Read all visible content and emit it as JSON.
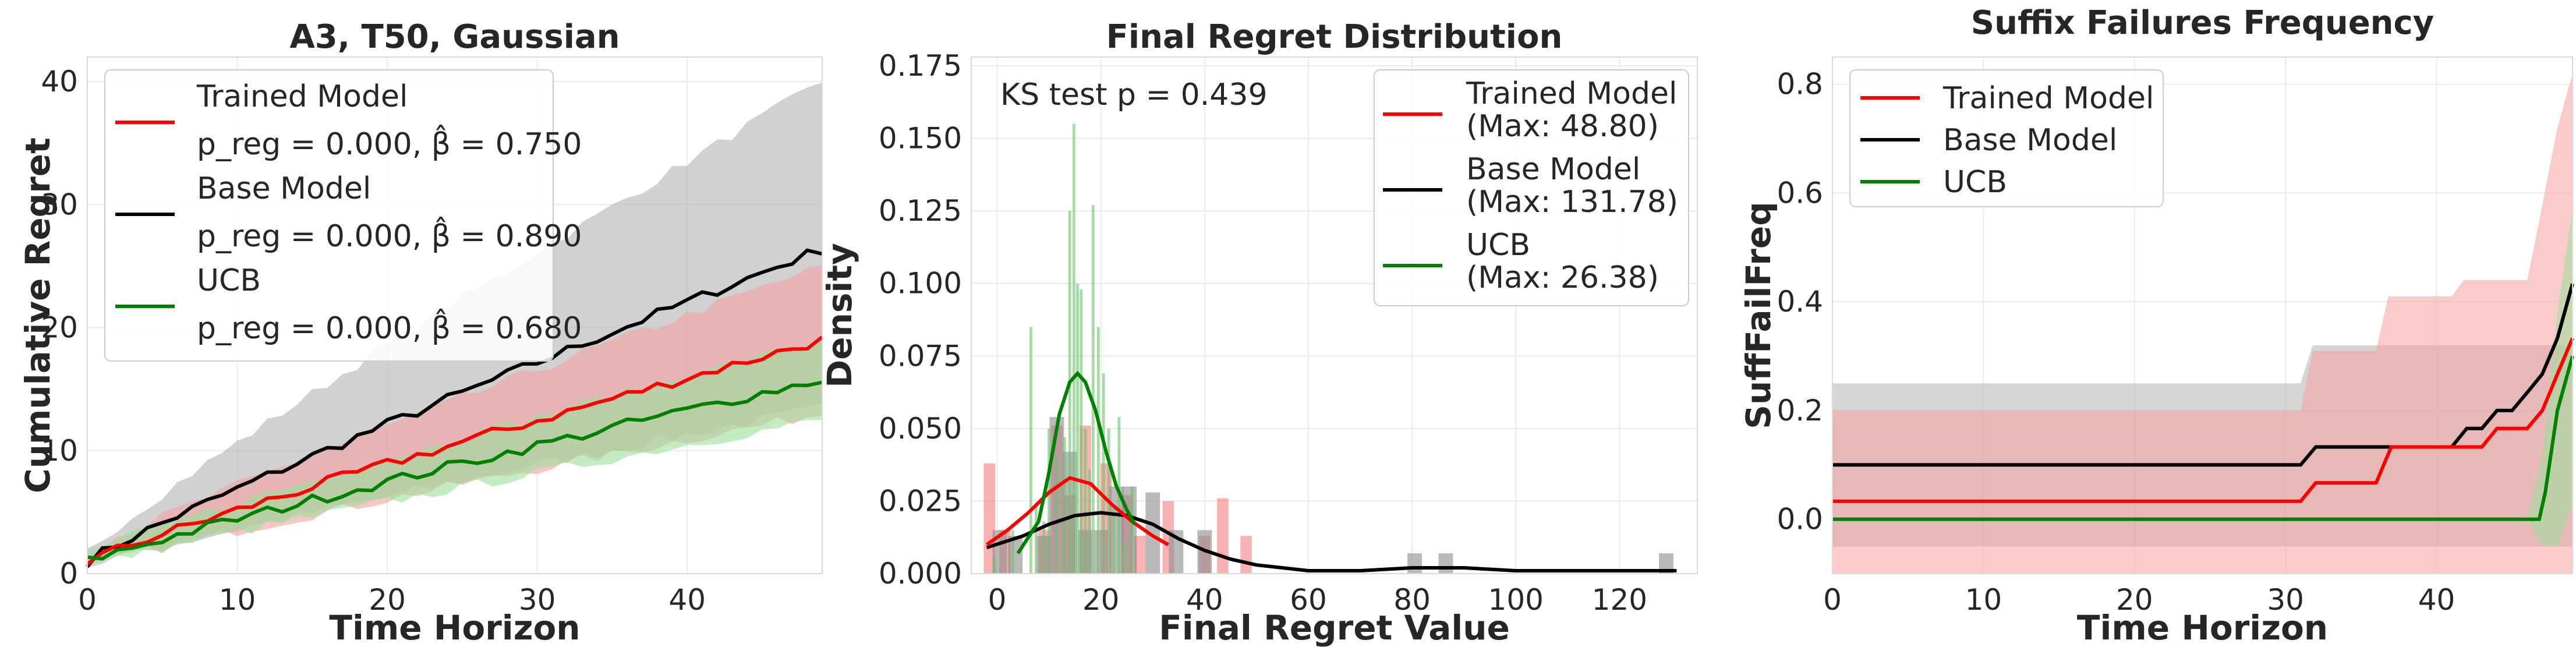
{
  "chart_data": [
    {
      "type": "line",
      "title": "A3, T50, Gaussian",
      "xlabel": "Time Horizon",
      "ylabel": "Cumulative Regret",
      "xlim": [
        0,
        49
      ],
      "ylim": [
        0,
        42
      ],
      "xticks": [
        "0",
        "10",
        "20",
        "30",
        "40"
      ],
      "yticks": [
        "0",
        "10",
        "20",
        "30",
        "40"
      ],
      "grid": true,
      "legend_position": "top-left",
      "series": [
        {
          "name": "Trained Model",
          "stat": "p_reg = 0.000, β̂ = 0.750",
          "color": "#ff0000",
          "band_color": "#f4a0a0",
          "end_value": 19.0,
          "end_low": 13.0,
          "end_high": 25.0
        },
        {
          "name": "Base Model",
          "stat": "p_reg = 0.000, β̂ = 0.890",
          "color": "#000000",
          "band_color": "#b3b3b3",
          "end_value": 26.4,
          "end_low": 13.5,
          "end_high": 40.0
        },
        {
          "name": "UCB",
          "stat": "p_reg = 0.000, β̂ = 0.680",
          "color": "#008000",
          "band_color": "#9be09b",
          "end_value": 15.8,
          "end_low": 12.5,
          "end_high": 19.0
        }
      ]
    },
    {
      "type": "bar",
      "title": "Final Regret Distribution",
      "xlabel": "Final Regret Value",
      "ylabel": "Density",
      "xlim": [
        -5,
        135
      ],
      "ylim": [
        0,
        0.178
      ],
      "xticks": [
        "0",
        "20",
        "40",
        "60",
        "80",
        "100",
        "120"
      ],
      "yticks": [
        "0.000",
        "0.025",
        "0.050",
        "0.075",
        "0.100",
        "0.125",
        "0.150",
        "0.175"
      ],
      "annotation": "KS test p = 0.439",
      "grid": true,
      "legend_position": "top-right",
      "series": [
        {
          "name": "Trained Model",
          "max_label": "(Max: 48.80)",
          "color": "#ff0000",
          "bar_color": "#f47f7f",
          "bars": [
            [
              -1.5,
              0.038
            ],
            [
              1.5,
              0.015
            ],
            [
              9,
              0.015
            ],
            [
              11.5,
              0.051
            ],
            [
              14,
              0.027
            ],
            [
              17,
              0.051
            ],
            [
              21,
              0.038
            ],
            [
              25,
              0.027
            ],
            [
              27.5,
              0.013
            ],
            [
              33,
              0.025
            ],
            [
              40,
              0.013
            ],
            [
              43.5,
              0.026
            ],
            [
              48,
              0.013
            ]
          ],
          "kde": [
            [
              -2,
              0.01
            ],
            [
              2,
              0.015
            ],
            [
              6,
              0.021
            ],
            [
              10,
              0.028
            ],
            [
              14,
              0.033
            ],
            [
              18,
              0.031
            ],
            [
              22,
              0.024
            ],
            [
              26,
              0.018
            ],
            [
              30,
              0.013
            ],
            [
              33,
              0.01
            ]
          ]
        },
        {
          "name": "Base Model",
          "max_label": "(Max: 131.78)",
          "color": "#000000",
          "bar_color": "#8c8c8c",
          "bars": [
            [
              0.5,
              0.015
            ],
            [
              3.5,
              0.013
            ],
            [
              9,
              0.013
            ],
            [
              11.5,
              0.054
            ],
            [
              14,
              0.042
            ],
            [
              17,
              0.015
            ],
            [
              20,
              0.015
            ],
            [
              23,
              0.03
            ],
            [
              25.5,
              0.03
            ],
            [
              30,
              0.028
            ],
            [
              34.5,
              0.015
            ],
            [
              40,
              0.015
            ],
            [
              80.5,
              0.007
            ],
            [
              86.5,
              0.007
            ],
            [
              129,
              0.007
            ]
          ],
          "kde": [
            [
              -2,
              0.009
            ],
            [
              5,
              0.013
            ],
            [
              10,
              0.017
            ],
            [
              15,
              0.02
            ],
            [
              20,
              0.021
            ],
            [
              25,
              0.02
            ],
            [
              30,
              0.017
            ],
            [
              35,
              0.012
            ],
            [
              40,
              0.008
            ],
            [
              45,
              0.005
            ],
            [
              50,
              0.003
            ],
            [
              55,
              0.002
            ],
            [
              60,
              0.001
            ],
            [
              70,
              0.001
            ],
            [
              80,
              0.002
            ],
            [
              90,
              0.002
            ],
            [
              100,
              0.001
            ],
            [
              110,
              0.001
            ],
            [
              120,
              0.001
            ],
            [
              131,
              0.001
            ]
          ]
        },
        {
          "name": "UCB",
          "max_label": "(Max: 26.38)",
          "color": "#008000",
          "bar_color": "#70c070",
          "bars": [
            [
              -0.5,
              0.006
            ],
            [
              3,
              0.015
            ],
            [
              6.5,
              0.085
            ],
            [
              7.5,
              0.024
            ],
            [
              9,
              0.018
            ],
            [
              10,
              0.05
            ],
            [
              11.5,
              0.04
            ],
            [
              13,
              0.047
            ],
            [
              14,
              0.125
            ],
            [
              14.8,
              0.155
            ],
            [
              15.5,
              0.1
            ],
            [
              16.2,
              0.098
            ],
            [
              17,
              0.05
            ],
            [
              17.8,
              0.036
            ],
            [
              18.5,
              0.127
            ],
            [
              19.5,
              0.085
            ],
            [
              20.5,
              0.069
            ],
            [
              21.5,
              0.05
            ],
            [
              22.5,
              0.024
            ],
            [
              23.5,
              0.054
            ],
            [
              24.5,
              0.011
            ],
            [
              26,
              0.03
            ]
          ],
          "kde": [
            [
              4,
              0.007
            ],
            [
              8,
              0.018
            ],
            [
              10,
              0.035
            ],
            [
              12,
              0.055
            ],
            [
              14,
              0.066
            ],
            [
              15.5,
              0.069
            ],
            [
              17,
              0.066
            ],
            [
              19,
              0.056
            ],
            [
              21,
              0.042
            ],
            [
              23,
              0.03
            ],
            [
              25,
              0.022
            ],
            [
              26.5,
              0.017
            ]
          ]
        }
      ]
    },
    {
      "type": "line",
      "title": "Suffix Failures Frequency",
      "xlabel": "Time Horizon",
      "ylabel": "SuffFailFreq",
      "xlim": [
        0,
        49
      ],
      "ylim": [
        -0.1,
        0.85
      ],
      "xticks": [
        "0",
        "10",
        "20",
        "30",
        "40"
      ],
      "yticks": [
        "0.0",
        "0.2",
        "0.4",
        "0.6",
        "0.8"
      ],
      "grid": true,
      "legend_position": "top-left",
      "series": [
        {
          "name": "Trained Model",
          "color": "#ff0000",
          "band_color": "#f4a0a0",
          "line": [
            [
              0,
              0.033
            ],
            [
              31,
              0.033
            ],
            [
              32,
              0.067
            ],
            [
              36,
              0.067
            ],
            [
              37,
              0.133
            ],
            [
              43,
              0.133
            ],
            [
              44,
              0.167
            ],
            [
              46,
              0.167
            ],
            [
              47,
              0.2
            ],
            [
              47.5,
              0.233
            ],
            [
              48,
              0.267
            ],
            [
              49,
              0.333
            ]
          ],
          "low": [
            [
              0,
              -0.1
            ],
            [
              49,
              -0.1
            ]
          ],
          "high": [
            [
              0,
              0.2
            ],
            [
              31,
              0.2
            ],
            [
              31.8,
              0.31
            ],
            [
              36,
              0.31
            ],
            [
              36.8,
              0.41
            ],
            [
              41,
              0.41
            ],
            [
              41.8,
              0.44
            ],
            [
              46,
              0.44
            ],
            [
              46.8,
              0.55
            ],
            [
              48,
              0.72
            ],
            [
              49,
              0.82
            ]
          ]
        },
        {
          "name": "Base Model",
          "color": "#000000",
          "band_color": "#b3b3b3",
          "line": [
            [
              0,
              0.1
            ],
            [
              31,
              0.1
            ],
            [
              32,
              0.133
            ],
            [
              41,
              0.133
            ],
            [
              42,
              0.167
            ],
            [
              43,
              0.167
            ],
            [
              44,
              0.2
            ],
            [
              45,
              0.2
            ],
            [
              46,
              0.233
            ],
            [
              47,
              0.267
            ],
            [
              48,
              0.333
            ],
            [
              49,
              0.433
            ]
          ],
          "low": [
            [
              0,
              -0.05
            ],
            [
              49,
              -0.05
            ]
          ],
          "high": [
            [
              0,
              0.25
            ],
            [
              31,
              0.25
            ],
            [
              31.8,
              0.32
            ],
            [
              49,
              0.32
            ]
          ]
        },
        {
          "name": "UCB",
          "color": "#008000",
          "band_color": "#9be09b",
          "line": [
            [
              0,
              0
            ],
            [
              46.8,
              0
            ],
            [
              47.2,
              0.05
            ],
            [
              48,
              0.2
            ],
            [
              49,
              0.3
            ]
          ],
          "low": [
            [
              0,
              0
            ],
            [
              46,
              0
            ],
            [
              47,
              -0.05
            ],
            [
              48,
              -0.05
            ],
            [
              49,
              0.03
            ]
          ],
          "high": [
            [
              0,
              0
            ],
            [
              46,
              0
            ],
            [
              47,
              0.12
            ],
            [
              48,
              0.38
            ],
            [
              49,
              0.57
            ]
          ]
        }
      ]
    }
  ]
}
